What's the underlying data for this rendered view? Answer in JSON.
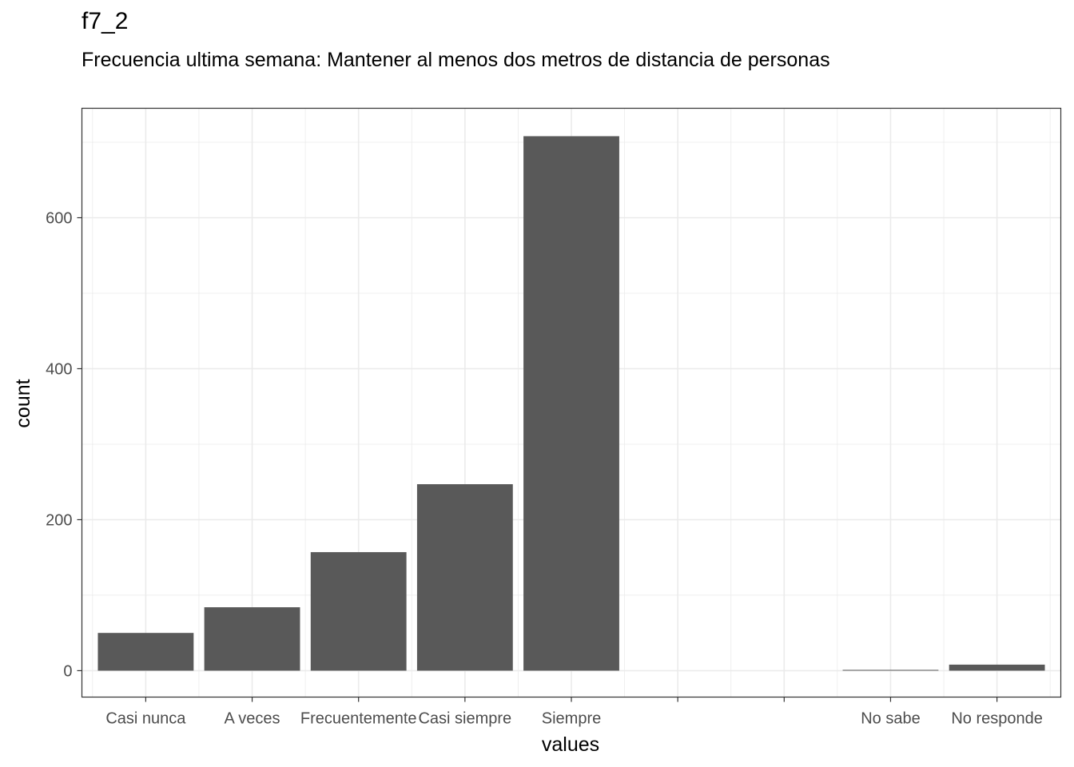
{
  "chart_data": {
    "type": "bar",
    "title": "f7_2",
    "subtitle": "Frecuencia ultima semana: Mantener al menos dos metros de distancia de personas",
    "xlabel": "values",
    "ylabel": "count",
    "categories": [
      "Casi nunca",
      "A veces",
      "Frecuentemente",
      "Casi siempre",
      "Siempre",
      "",
      "",
      "No sabe",
      "No responde"
    ],
    "values": [
      50,
      84,
      157,
      247,
      708,
      0,
      0,
      1,
      8
    ],
    "ylim": [
      -35,
      745
    ],
    "yticks": [
      0,
      200,
      400,
      600
    ],
    "bar_color": "#595959",
    "grid": true,
    "theme": "bw"
  }
}
